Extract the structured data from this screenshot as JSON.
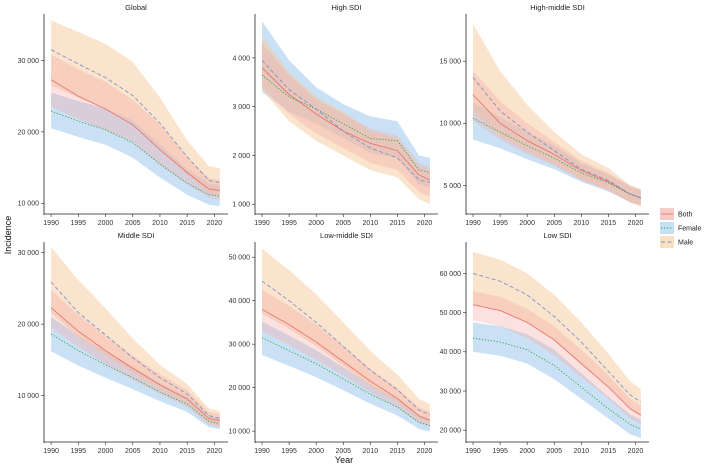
{
  "chart_data": {
    "type": "line",
    "xlabel": "Year",
    "ylabel": "Incidence",
    "x_ticks": [
      1990,
      1995,
      2000,
      2005,
      2010,
      2015,
      2020
    ],
    "legend": [
      {
        "name": "Both",
        "color": "#e8776e",
        "fill": "#f4a9a2",
        "dash": "solid"
      },
      {
        "name": "Female",
        "color": "#2aa23a",
        "fill": "#9ec9ec",
        "dash": "dotted"
      },
      {
        "name": "Male",
        "color": "#7f93c6",
        "fill": "#f8c99b",
        "dash": "dashed"
      }
    ],
    "panels": [
      {
        "title": "Global",
        "ylim": [
          8500,
          36500
        ],
        "y_ticks": [
          10000,
          20000,
          30000
        ],
        "y_tick_labels": [
          "10 000",
          "20 000",
          "30 000"
        ],
        "x": [
          1990,
          1995,
          2000,
          2005,
          2010,
          2015,
          2019,
          2021
        ],
        "series": [
          {
            "name": "Both",
            "values": [
              27300,
              25000,
              23200,
              21000,
              17500,
              14300,
              12000,
              11800
            ],
            "lower": [
              23500,
              21800,
              20200,
              18600,
              15300,
              12700,
              10800,
              10500
            ],
            "upper": [
              30800,
              28800,
              27000,
              24500,
              21000,
              16500,
              13500,
              13200
            ]
          },
          {
            "name": "Female",
            "values": [
              22900,
              21500,
              20300,
              18500,
              15500,
              12800,
              11200,
              11000
            ],
            "lower": [
              20500,
              19300,
              18200,
              16400,
              13600,
              11200,
              9800,
              9600
            ],
            "upper": [
              25500,
              24300,
              23300,
              21600,
              18200,
              14800,
              12800,
              12600
            ]
          },
          {
            "name": "Male",
            "values": [
              31500,
              29500,
              27600,
              25100,
              21200,
              16500,
              13200,
              12900
            ],
            "lower": [
              26500,
              24800,
              23200,
              21300,
              17800,
              14100,
              11400,
              11100
            ],
            "upper": [
              35600,
              34000,
              32300,
              29800,
              24800,
              18800,
              15200,
              14900
            ]
          }
        ]
      },
      {
        "title": "High SDI",
        "ylim": [
          800,
          4900
        ],
        "y_ticks": [
          1000,
          2000,
          3000,
          4000
        ],
        "y_tick_labels": [
          "1 000",
          "2 000",
          "3 000",
          "4 000"
        ],
        "x": [
          1990,
          1995,
          2000,
          2005,
          2010,
          2015,
          2019,
          2021
        ],
        "series": [
          {
            "name": "Both",
            "values": [
              3800,
              3250,
              2850,
              2500,
              2250,
              2100,
              1600,
              1500
            ],
            "lower": [
              3400,
              2850,
              2450,
              2150,
              1850,
              1700,
              1250,
              1150
            ],
            "upper": [
              4300,
              3650,
              3150,
              2850,
              2550,
              2400,
              1850,
              1750
            ]
          },
          {
            "name": "Female",
            "values": [
              3650,
              3200,
              2950,
              2650,
              2350,
              2300,
              1700,
              1650
            ],
            "lower": [
              3300,
              2900,
              2650,
              2350,
              2050,
              1950,
              1400,
              1350
            ],
            "upper": [
              4750,
              3950,
              3400,
              3050,
              2800,
              2700,
              2000,
              1950
            ]
          },
          {
            "name": "Male",
            "values": [
              3950,
              3350,
              2950,
              2500,
              2150,
              1950,
              1500,
              1450
            ],
            "lower": [
              3350,
              2700,
              2300,
              2000,
              1700,
              1550,
              1100,
              1000
            ],
            "upper": [
              4450,
              3700,
              3200,
              2900,
              2500,
              2350,
              1750,
              1700
            ]
          }
        ]
      },
      {
        "title": "High-middle SDI",
        "ylim": [
          2700,
          18800
        ],
        "y_ticks": [
          5000,
          10000,
          15000
        ],
        "y_tick_labels": [
          "5 000",
          "10 000",
          "15 000"
        ],
        "x": [
          1990,
          1995,
          2000,
          2005,
          2010,
          2015,
          2019,
          2021
        ],
        "series": [
          {
            "name": "Both",
            "values": [
              12300,
              10000,
              8600,
              7500,
              6200,
              5300,
              4300,
              4000
            ],
            "lower": [
              10200,
              8700,
              7500,
              6600,
              5400,
              4600,
              3600,
              3400
            ],
            "upper": [
              14200,
              11800,
              10000,
              8500,
              7000,
              6000,
              5000,
              4700
            ]
          },
          {
            "name": "Female",
            "values": [
              10400,
              9300,
              8200,
              7200,
              6000,
              5200,
              4300,
              4000
            ],
            "lower": [
              8700,
              8000,
              7100,
              6300,
              5300,
              4500,
              3700,
              3400
            ],
            "upper": [
              11700,
              10500,
              9300,
              8200,
              6800,
              5900,
              4900,
              4600
            ]
          },
          {
            "name": "Male",
            "values": [
              13700,
              11000,
              9300,
              7800,
              6300,
              5400,
              4300,
              4000
            ],
            "lower": [
              11000,
              9000,
              7800,
              6700,
              5500,
              4600,
              3600,
              3300
            ],
            "upper": [
              18000,
              14200,
              11500,
              9300,
              7500,
              6400,
              5000,
              4700
            ]
          }
        ]
      },
      {
        "title": "Middle SDI",
        "ylim": [
          3500,
          31500
        ],
        "y_ticks": [
          10000,
          20000,
          30000
        ],
        "y_tick_labels": [
          "10 000",
          "20 000",
          "30 000"
        ],
        "x": [
          1990,
          1995,
          2000,
          2005,
          2010,
          2015,
          2019,
          2021
        ],
        "series": [
          {
            "name": "Both",
            "values": [
              22300,
              19000,
              16300,
              13800,
              11500,
              9500,
              6800,
              6500
            ],
            "lower": [
              19500,
              16800,
              14400,
              12200,
              10200,
              8400,
              5900,
              5600
            ],
            "upper": [
              24800,
              21300,
              18400,
              15600,
              13000,
              10800,
              7700,
              7400
            ]
          },
          {
            "name": "Female",
            "values": [
              18600,
              16300,
              14300,
              12500,
              10500,
              8800,
              6400,
              6100
            ],
            "lower": [
              16200,
              14200,
              12500,
              10900,
              9200,
              7700,
              5600,
              5300
            ],
            "upper": [
              21000,
              18400,
              16200,
              14100,
              11800,
              9900,
              7200,
              6900
            ]
          },
          {
            "name": "Male",
            "values": [
              25900,
              21600,
              18500,
              15300,
              12500,
              10200,
              7200,
              6800
            ],
            "lower": [
              21600,
              18200,
              15700,
              13200,
              10800,
              8900,
              6200,
              5800
            ],
            "upper": [
              30800,
              26200,
              22200,
              18000,
              14300,
              11600,
              8200,
              7800
            ]
          }
        ]
      },
      {
        "title": "Low-middle SDI",
        "ylim": [
          7500,
          53500
        ],
        "y_ticks": [
          10000,
          20000,
          30000,
          40000,
          50000
        ],
        "y_tick_labels": [
          "10 000",
          "20 000",
          "30 000",
          "40 000",
          "50 000"
        ],
        "x": [
          1990,
          1995,
          2000,
          2005,
          2010,
          2015,
          2019,
          2021
        ],
        "series": [
          {
            "name": "Both",
            "values": [
              38000,
              34500,
              30500,
              26000,
              21500,
              17500,
              13500,
              12500
            ],
            "lower": [
              33000,
              29800,
              26400,
              22800,
              18900,
              15400,
              11800,
              11000
            ],
            "upper": [
              42500,
              38800,
              34500,
              29600,
              24400,
              19900,
              15500,
              14400
            ]
          },
          {
            "name": "Female",
            "values": [
              31500,
              28500,
              25500,
              22000,
              18500,
              15500,
              12000,
              11300
            ],
            "lower": [
              27500,
              25000,
              22400,
              19400,
              16300,
              13600,
              10500,
              9900
            ],
            "upper": [
              35200,
              32000,
              28600,
              24700,
              20800,
              17400,
              13500,
              12700
            ]
          },
          {
            "name": "Male",
            "values": [
              44500,
              40000,
              35000,
              29500,
              24000,
              19500,
              14800,
              13800
            ],
            "lower": [
              37000,
              33500,
              29500,
              25000,
              20500,
              16800,
              12700,
              11800
            ],
            "upper": [
              52000,
              47000,
              41500,
              35000,
              28500,
              23000,
              17400,
              16200
            ]
          }
        ]
      },
      {
        "title": "Low SDI",
        "ylim": [
          17000,
          68000
        ],
        "y_ticks": [
          20000,
          30000,
          40000,
          50000,
          60000
        ],
        "y_tick_labels": [
          "20 000",
          "30 000",
          "40 000",
          "50 000",
          "60 000"
        ],
        "x": [
          1990,
          1995,
          2000,
          2005,
          2010,
          2015,
          2019,
          2021
        ],
        "series": [
          {
            "name": "Both",
            "values": [
              52000,
              50500,
              47500,
              43000,
              37000,
              31000,
              25500,
              23800
            ],
            "lower": [
              48000,
              46500,
              43500,
              39000,
              33500,
              28000,
              23000,
              21500
            ],
            "upper": [
              55500,
              54000,
              51000,
              46500,
              40500,
              34000,
              28000,
              26200
            ]
          },
          {
            "name": "Female",
            "values": [
              43500,
              42500,
              40500,
              36500,
              31000,
              25500,
              21500,
              20300
            ],
            "lower": [
              40000,
              39000,
              37000,
              33000,
              28000,
              23000,
              19000,
              18000
            ],
            "upper": [
              47500,
              46500,
              44500,
              40500,
              34500,
              28500,
              24000,
              22700
            ]
          },
          {
            "name": "Male",
            "values": [
              60000,
              58000,
              54500,
              49000,
              42500,
              35000,
              29000,
              27200
            ],
            "lower": [
              52000,
              50500,
              47500,
              43000,
              37000,
              31000,
              25500,
              23800
            ],
            "upper": [
              65500,
              63500,
              60000,
              54500,
              47500,
              39500,
              32500,
              30500
            ]
          }
        ]
      }
    ]
  }
}
